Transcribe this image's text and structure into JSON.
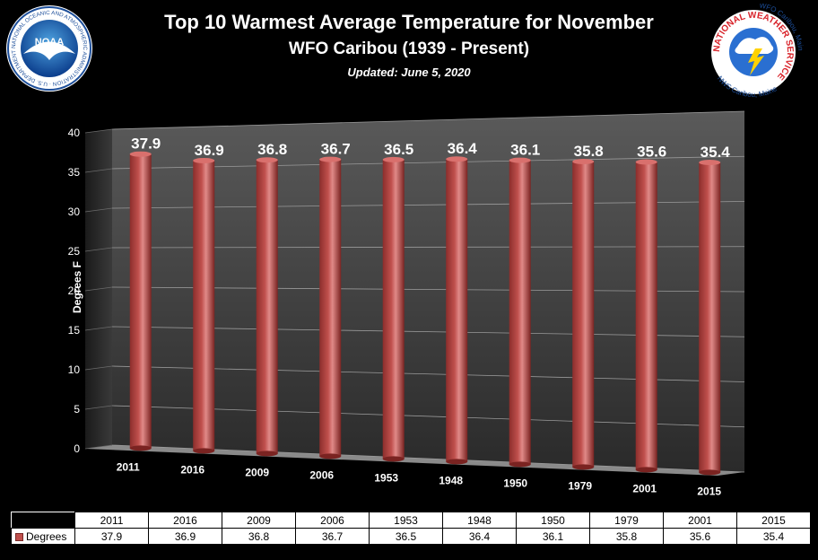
{
  "header": {
    "title": "Top 10 Warmest  Average Temperature for November",
    "subtitle": "WFO Caribou (1939 - Present)",
    "updated": "Updated: June 5, 2020"
  },
  "logos": {
    "noaa_text": "NOAA",
    "noaa_ring": "NATIONAL OCEANIC AND ATMOSPHERIC ADMINISTRATION · U.S. DEPARTMENT OF COMMERCE",
    "nws_top": "WFO Caribou, Maine",
    "nws_ring": "NATIONAL WEATHER SERVICE",
    "nws_bottom": "NWS Caribou, Maine"
  },
  "colors": {
    "bar": "#c0504d",
    "background": "#000000"
  },
  "chart_data": {
    "type": "bar",
    "categories": [
      "2011",
      "2016",
      "2009",
      "2006",
      "1953",
      "1948",
      "1950",
      "1979",
      "2001",
      "2015"
    ],
    "series": [
      {
        "name": "Degrees",
        "values": [
          37.9,
          36.9,
          36.8,
          36.7,
          36.5,
          36.4,
          36.1,
          35.8,
          35.6,
          35.4
        ]
      }
    ],
    "data_labels": [
      "37.9",
      "36.9",
      "36.8",
      "36.7",
      "36.5",
      "36.4",
      "36.1",
      "35.8",
      "35.6",
      "35.4"
    ],
    "ylabel": "Degrees F",
    "ylim": [
      0,
      40
    ],
    "yticks": [
      0,
      5,
      10,
      15,
      20,
      25,
      30,
      35,
      40
    ],
    "grid": true
  },
  "table": {
    "series_label": "Degrees",
    "years": [
      "2011",
      "2016",
      "2009",
      "2006",
      "1953",
      "1948",
      "1950",
      "1979",
      "2001",
      "2015"
    ],
    "values": [
      "37.9",
      "36.9",
      "36.8",
      "36.7",
      "36.5",
      "36.4",
      "36.1",
      "35.8",
      "35.6",
      "35.4"
    ]
  }
}
